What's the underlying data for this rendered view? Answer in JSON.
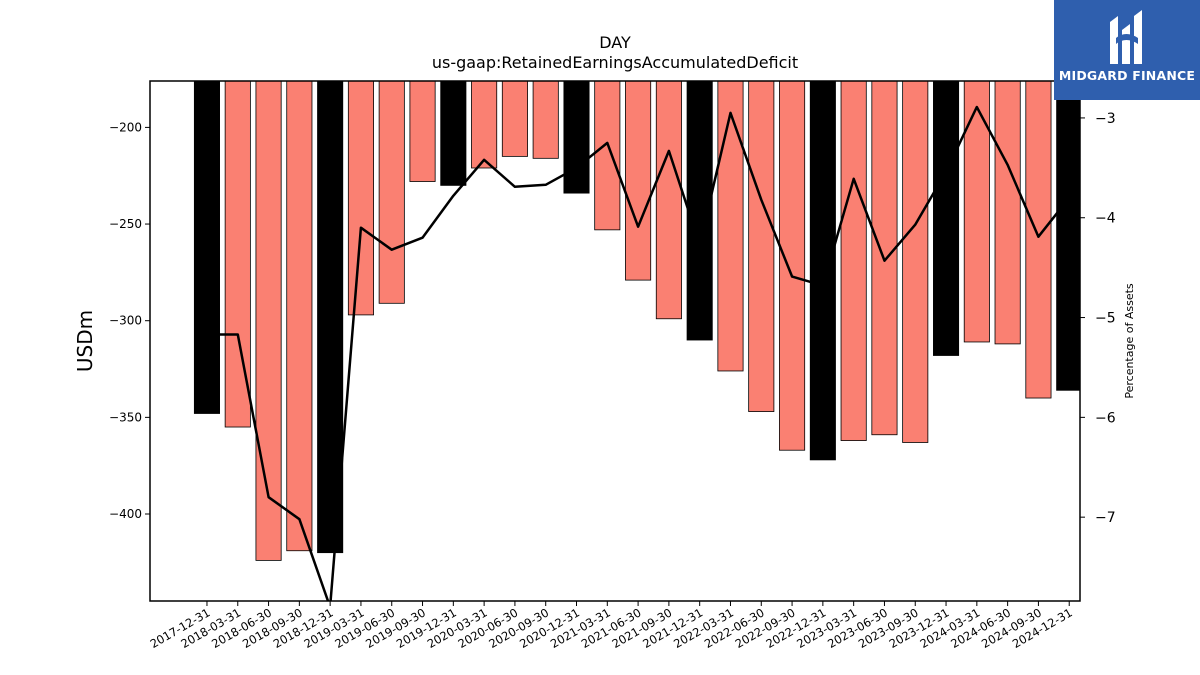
{
  "logo": {
    "text": "MIDGARD FINANCE",
    "icon": "midgard-logo-icon",
    "background": "#2f5fae"
  },
  "chart_data": {
    "type": "bar",
    "title": "DAY",
    "subtitle": "us-gaap:RetainedEarningsAccumulatedDeficit",
    "ylabel": "USDm",
    "y2label": "Percentage of Assets",
    "ylim": [
      -445,
      -176
    ],
    "y2lim": [
      -7.84,
      -2.63
    ],
    "yticks": [
      -200,
      -250,
      -300,
      -350,
      -400
    ],
    "y2ticks": [
      -3,
      -4,
      -5,
      -6,
      -7
    ],
    "colors": {
      "q4": "#000000",
      "other": "#fa8072",
      "line": "#000000"
    },
    "categories": [
      "2017-12-31",
      "2018-03-31",
      "2018-06-30",
      "2018-09-30",
      "2018-12-31",
      "2019-03-31",
      "2019-06-30",
      "2019-09-30",
      "2019-12-31",
      "2020-03-31",
      "2020-06-30",
      "2020-09-30",
      "2020-12-31",
      "2021-03-31",
      "2021-06-30",
      "2021-09-30",
      "2021-12-31",
      "2022-03-31",
      "2022-06-30",
      "2022-09-30",
      "2022-12-31",
      "2023-03-31",
      "2023-06-30",
      "2023-09-30",
      "2023-12-31",
      "2024-03-31",
      "2024-06-30",
      "2024-09-30",
      "2024-12-31"
    ],
    "series": [
      {
        "type": "bar",
        "values": [
          -348,
          -355,
          -424,
          -419,
          -420,
          -297,
          -291,
          -228,
          -230,
          -221,
          -215,
          -216,
          -234,
          -253,
          -279,
          -299,
          -310,
          -326,
          -347,
          -367,
          -372,
          -362,
          -359,
          -363,
          -318,
          -311,
          -312,
          -340,
          -336
        ]
      },
      {
        "type": "line",
        "axis": "right",
        "values": [
          -5.17,
          -5.17,
          -6.8,
          -7.02,
          -7.9,
          -4.1,
          -4.32,
          -4.2,
          -3.78,
          -3.42,
          -3.69,
          -3.67,
          -3.5,
          -3.25,
          -4.09,
          -3.33,
          -4.27,
          -2.95,
          -3.82,
          -4.59,
          -4.68,
          -3.61,
          -4.43,
          -4.07,
          -3.54,
          -2.89,
          -3.47,
          -4.19,
          -3.8
        ]
      }
    ]
  }
}
